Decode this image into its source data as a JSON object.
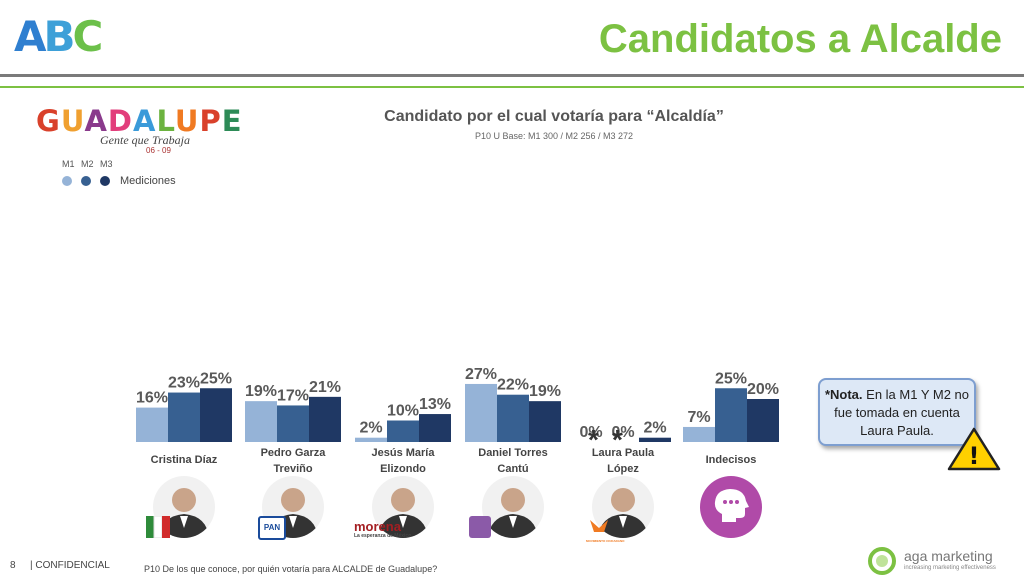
{
  "header": {
    "logo_parts": [
      "A",
      "B",
      "C"
    ],
    "title": "Candidatos a Alcalde"
  },
  "brand": {
    "word": "GUADALUPE",
    "tagline": "Gente que Trabaja",
    "years": "06 - 09"
  },
  "legend": {
    "codes": [
      "M1",
      "M2",
      "M3"
    ],
    "label": "Mediciones"
  },
  "colors": {
    "M1": "#95b3d7",
    "M2": "#376091",
    "M3": "#1f3864",
    "accent": "#7cc142"
  },
  "chart_data": {
    "type": "bar",
    "title": "Candidato por el cual votaría para “Alcaldía”",
    "subtitle": "P10 U Base: M1 300 / M2 256 / M3 272",
    "categories": [
      "Cristina Díaz",
      "Pedro Garza Treviño",
      "Jesús María Elizondo",
      "Daniel Torres Cantú",
      "Laura Paula López",
      "Indecisos"
    ],
    "series": [
      {
        "name": "M1",
        "values": [
          16,
          19,
          2,
          27,
          0,
          7
        ]
      },
      {
        "name": "M2",
        "values": [
          23,
          17,
          10,
          22,
          0,
          25
        ]
      },
      {
        "name": "M3",
        "values": [
          25,
          21,
          13,
          19,
          2,
          20
        ]
      }
    ],
    "labels": [
      [
        "16%",
        "23%",
        "25%"
      ],
      [
        "19%",
        "17%",
        "21%"
      ],
      [
        "2%",
        "10%",
        "13%"
      ],
      [
        "27%",
        "22%",
        "19%"
      ],
      [
        "0%",
        "0%",
        "2%"
      ],
      [
        "7%",
        "25%",
        "20%"
      ]
    ],
    "ylim": [
      0,
      30
    ],
    "grid": false,
    "legend_position": "top-left"
  },
  "candidates": [
    {
      "line1": "Cristina Díaz",
      "line2": "",
      "party": "PRI"
    },
    {
      "line1": "Pedro Garza",
      "line2": "Treviño",
      "party": "PAN"
    },
    {
      "line1": "Jesús María",
      "line2": "Elizondo",
      "party": "morena",
      "party_sub": "La esperanza de México"
    },
    {
      "line1": "Daniel Torres",
      "line2": "Cantú",
      "party": ""
    },
    {
      "line1": "Laura Paula",
      "line2": "López",
      "party": "MOVIMIENTO CIUDADANO"
    },
    {
      "line1": "Indecisos",
      "line2": "",
      "party": ""
    }
  ],
  "asterisk": "*",
  "note": {
    "bold": "*Nota.",
    "text": "En la M1 Y M2 no fue tomada en cuenta Laura Paula."
  },
  "warning_symbol": "!",
  "footer": {
    "page": "8",
    "confidential": "| CONFIDENCIAL",
    "question": "P10 De los que conoce, por quién votaría para ALCALDE de Guadalupe?",
    "company": "aga marketing",
    "company_tag": "increasing marketing effectiveness"
  }
}
